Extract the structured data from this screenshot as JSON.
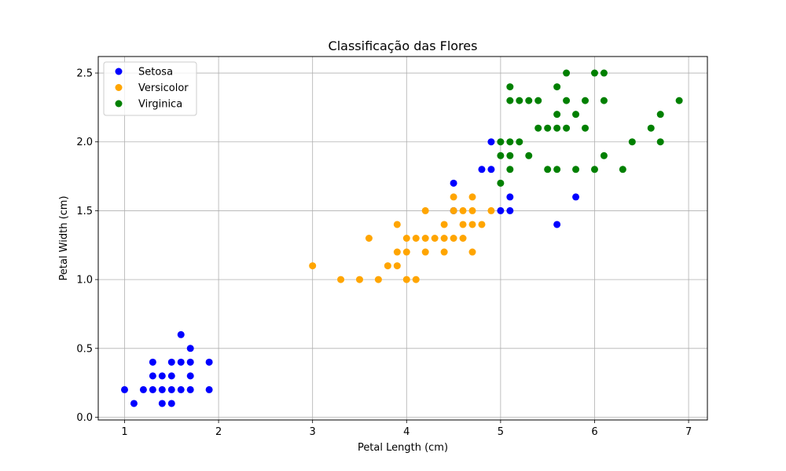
{
  "chart_data": {
    "type": "scatter",
    "title": "Classificação das Flores",
    "xlabel": "Petal Length (cm)",
    "ylabel": "Petal Width (cm)",
    "xlim": [
      0.72,
      7.2
    ],
    "ylim": [
      -0.02,
      2.62
    ],
    "xticks": [
      1,
      2,
      3,
      4,
      5,
      6,
      7
    ],
    "yticks": [
      0.0,
      0.5,
      1.0,
      1.5,
      2.0,
      2.5
    ],
    "xtick_labels": [
      "1",
      "2",
      "3",
      "4",
      "5",
      "6",
      "7"
    ],
    "ytick_labels": [
      "0.0",
      "0.5",
      "1.0",
      "1.5",
      "2.0",
      "2.5"
    ],
    "grid": true,
    "legend_position": "top-left",
    "series": [
      {
        "name": "Setosa",
        "color": "#0000ff",
        "points": [
          [
            1.0,
            0.2
          ],
          [
            1.1,
            0.1
          ],
          [
            1.2,
            0.2
          ],
          [
            1.3,
            0.2
          ],
          [
            1.3,
            0.3
          ],
          [
            1.3,
            0.4
          ],
          [
            1.4,
            0.1
          ],
          [
            1.4,
            0.2
          ],
          [
            1.4,
            0.3
          ],
          [
            1.5,
            0.1
          ],
          [
            1.5,
            0.2
          ],
          [
            1.5,
            0.3
          ],
          [
            1.5,
            0.4
          ],
          [
            1.6,
            0.2
          ],
          [
            1.6,
            0.4
          ],
          [
            1.6,
            0.6
          ],
          [
            1.7,
            0.2
          ],
          [
            1.7,
            0.3
          ],
          [
            1.7,
            0.4
          ],
          [
            1.7,
            0.5
          ],
          [
            1.9,
            0.2
          ],
          [
            1.9,
            0.4
          ],
          [
            4.5,
            1.5
          ],
          [
            4.5,
            1.7
          ],
          [
            4.8,
            1.8
          ],
          [
            4.9,
            1.8
          ],
          [
            4.9,
            2.0
          ],
          [
            5.0,
            1.5
          ],
          [
            5.1,
            1.5
          ],
          [
            5.1,
            1.6
          ],
          [
            5.6,
            1.4
          ],
          [
            5.8,
            1.6
          ]
        ]
      },
      {
        "name": "Versicolor",
        "color": "#ffa500",
        "points": [
          [
            3.0,
            1.1
          ],
          [
            3.3,
            1.0
          ],
          [
            3.5,
            1.0
          ],
          [
            3.6,
            1.3
          ],
          [
            3.7,
            1.0
          ],
          [
            3.8,
            1.1
          ],
          [
            3.9,
            1.1
          ],
          [
            3.9,
            1.2
          ],
          [
            3.9,
            1.4
          ],
          [
            4.0,
            1.0
          ],
          [
            4.0,
            1.2
          ],
          [
            4.0,
            1.3
          ],
          [
            4.1,
            1.0
          ],
          [
            4.1,
            1.3
          ],
          [
            4.2,
            1.2
          ],
          [
            4.2,
            1.3
          ],
          [
            4.2,
            1.5
          ],
          [
            4.3,
            1.3
          ],
          [
            4.4,
            1.2
          ],
          [
            4.4,
            1.3
          ],
          [
            4.4,
            1.4
          ],
          [
            4.5,
            1.3
          ],
          [
            4.5,
            1.5
          ],
          [
            4.5,
            1.6
          ],
          [
            4.6,
            1.3
          ],
          [
            4.6,
            1.4
          ],
          [
            4.6,
            1.5
          ],
          [
            4.7,
            1.2
          ],
          [
            4.7,
            1.4
          ],
          [
            4.7,
            1.5
          ],
          [
            4.7,
            1.6
          ],
          [
            4.8,
            1.4
          ],
          [
            4.9,
            1.5
          ]
        ]
      },
      {
        "name": "Virginica",
        "color": "#008000",
        "points": [
          [
            5.0,
            1.7
          ],
          [
            5.0,
            1.9
          ],
          [
            5.0,
            2.0
          ],
          [
            5.1,
            1.8
          ],
          [
            5.1,
            1.9
          ],
          [
            5.1,
            2.0
          ],
          [
            5.1,
            2.3
          ],
          [
            5.1,
            2.4
          ],
          [
            5.2,
            2.0
          ],
          [
            5.2,
            2.3
          ],
          [
            5.3,
            1.9
          ],
          [
            5.3,
            2.3
          ],
          [
            5.4,
            2.1
          ],
          [
            5.4,
            2.3
          ],
          [
            5.5,
            1.8
          ],
          [
            5.5,
            2.1
          ],
          [
            5.6,
            1.8
          ],
          [
            5.6,
            2.1
          ],
          [
            5.6,
            2.2
          ],
          [
            5.6,
            2.4
          ],
          [
            5.7,
            2.1
          ],
          [
            5.7,
            2.3
          ],
          [
            5.7,
            2.5
          ],
          [
            5.8,
            1.8
          ],
          [
            5.8,
            2.2
          ],
          [
            5.9,
            2.1
          ],
          [
            5.9,
            2.3
          ],
          [
            6.0,
            1.8
          ],
          [
            6.0,
            2.5
          ],
          [
            6.1,
            1.9
          ],
          [
            6.1,
            2.3
          ],
          [
            6.1,
            2.5
          ],
          [
            6.3,
            1.8
          ],
          [
            6.4,
            2.0
          ],
          [
            6.6,
            2.1
          ],
          [
            6.7,
            2.0
          ],
          [
            6.7,
            2.2
          ],
          [
            6.9,
            2.3
          ]
        ]
      }
    ]
  }
}
